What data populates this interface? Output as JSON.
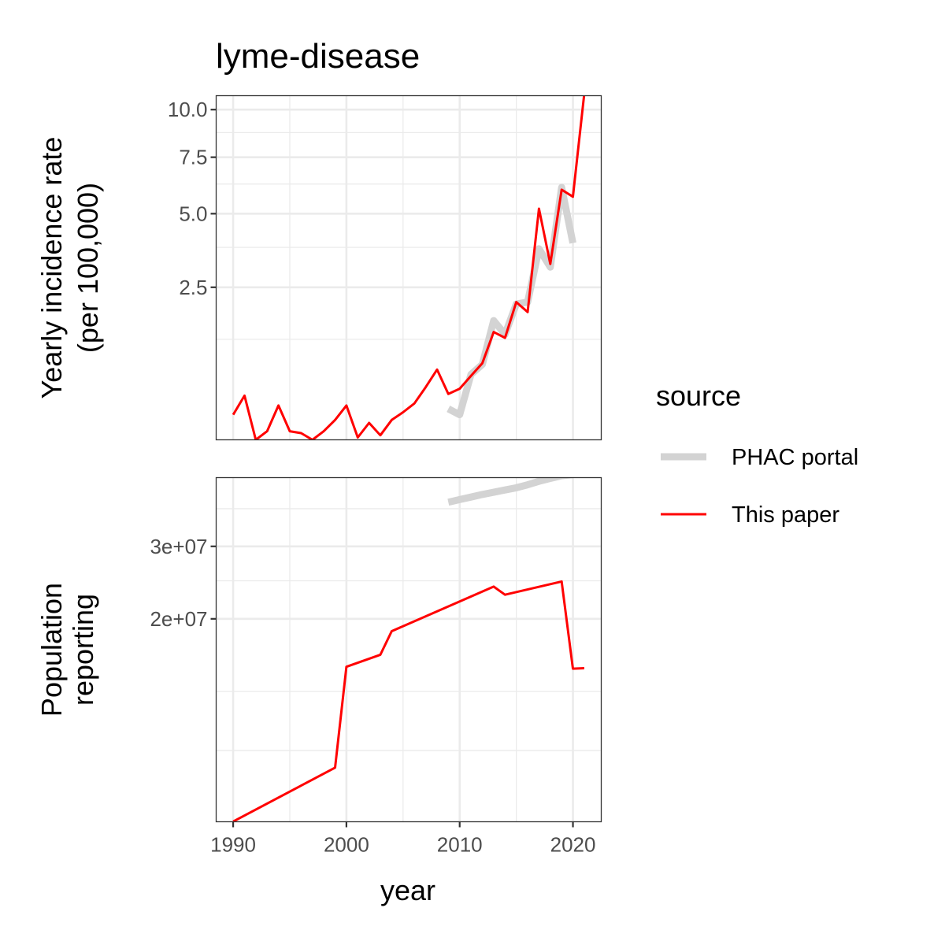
{
  "chart_data": {
    "type": "line",
    "title": "lyme-disease",
    "xlabel": "year",
    "x_ticks": [
      1990,
      2000,
      2010,
      2020
    ],
    "xlim": [
      1988.5,
      2022.5
    ],
    "legend": {
      "title": "source",
      "position": "right",
      "entries": [
        {
          "label": "PHAC portal",
          "color": "#d3d3d3"
        },
        {
          "label": "This paper",
          "color": "#ff0000"
        }
      ]
    },
    "panels": [
      {
        "ylabel": "Yearly incidence rate\n(per 100,000)",
        "scale": "sqrt",
        "ylim": [
          0.05,
          10.8
        ],
        "y_ticks": [
          2.5,
          5.0,
          7.5,
          10.0
        ],
        "y_tick_labels": [
          "2.5",
          "5.0",
          "7.5",
          "10.0"
        ],
        "y_minor": [
          1.25,
          3.75,
          6.25,
          8.75
        ],
        "series": [
          {
            "name": "PHAC portal",
            "x": [
              2009,
              2010,
              2011,
              2012,
              2013,
              2014,
              2015,
              2016,
              2017,
              2018,
              2019,
              2020
            ],
            "y": [
              0.25,
              0.2,
              0.65,
              0.8,
              1.65,
              1.35,
              2.05,
              2.1,
              3.7,
              3.1,
              6.1,
              3.9
            ]
          },
          {
            "name": "This paper",
            "x": [
              1990,
              1991,
              1992,
              1993,
              1994,
              1995,
              1996,
              1997,
              1998,
              1999,
              2000,
              2001,
              2002,
              2003,
              2004,
              2005,
              2006,
              2007,
              2008,
              2009,
              2010,
              2011,
              2012,
              2013,
              2014,
              2015,
              2016,
              2017,
              2018,
              2019,
              2020,
              2021
            ],
            "y": [
              0.2,
              0.38,
              0.05,
              0.09,
              0.28,
              0.09,
              0.08,
              0.05,
              0.09,
              0.16,
              0.28,
              0.06,
              0.14,
              0.07,
              0.16,
              0.22,
              0.3,
              0.48,
              0.72,
              0.4,
              0.46,
              0.63,
              0.82,
              1.4,
              1.28,
              2.1,
              1.85,
              5.2,
              3.2,
              6.0,
              5.7,
              10.9
            ]
          }
        ]
      },
      {
        "ylabel": "Population\nreporting",
        "scale": "sqrt",
        "ylim": [
          2750000,
          41350000
        ],
        "y_ticks": [
          20000000,
          30000000
        ],
        "y_tick_labels": [
          "2e+07",
          "3e+07"
        ],
        "y_minor": [
          7000000,
          12000000,
          25000000,
          36000000
        ],
        "series": [
          {
            "name": "PHAC portal",
            "x": [
              2009,
              2010,
              2011,
              2012,
              2013,
              2014,
              2015,
              2016,
              2017,
              2018,
              2019,
              2020
            ],
            "y": [
              37080000,
              37520000,
              37960000,
              38400000,
              38780000,
              39170000,
              39560000,
              40080000,
              40690000,
              41210000,
              41690000,
              41890000
            ]
          },
          {
            "name": "This paper",
            "x": [
              1990,
              1999,
              2000,
              2003,
              2004,
              2013,
              2014,
              2019,
              2020,
              2021
            ],
            "y": [
              2760000,
              5800000,
              14500000,
              15800000,
              18500000,
              24200000,
              23100000,
              24900000,
              14300000,
              14350000
            ]
          }
        ]
      }
    ]
  }
}
